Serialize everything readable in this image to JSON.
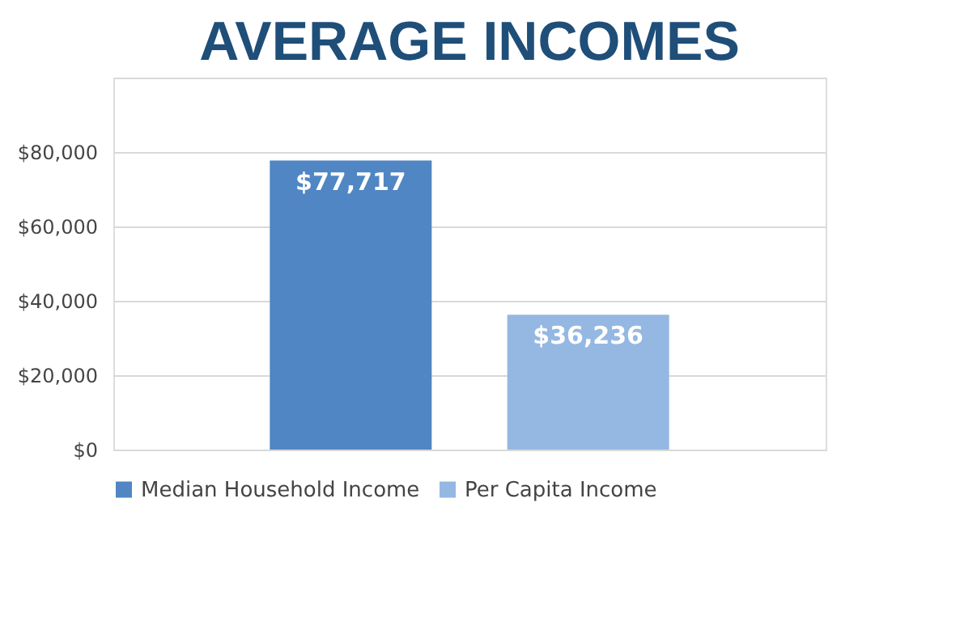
{
  "chart_data": {
    "type": "bar",
    "title": "AVERAGE INCOMES",
    "categories": [
      null
    ],
    "series": [
      {
        "name": "Median Household Income",
        "color": "#4f86c3",
        "values": [
          77717
        ],
        "value_labels": [
          "$77,717"
        ]
      },
      {
        "name": "Per Capita Income",
        "color": "#95b8e2",
        "values": [
          36236
        ],
        "value_labels": [
          "$36,236"
        ]
      }
    ],
    "ylim": [
      0,
      100000
    ],
    "yticks": [
      {
        "value": 0,
        "label": "$0"
      },
      {
        "value": 20000,
        "label": "$20,000"
      },
      {
        "value": 40000,
        "label": "$40,000"
      },
      {
        "value": 60000,
        "label": "$60,000"
      },
      {
        "value": 80000,
        "label": "$80,000"
      },
      {
        "value": 100000,
        "label": null
      }
    ],
    "grid": "y",
    "legend": "bottom"
  }
}
